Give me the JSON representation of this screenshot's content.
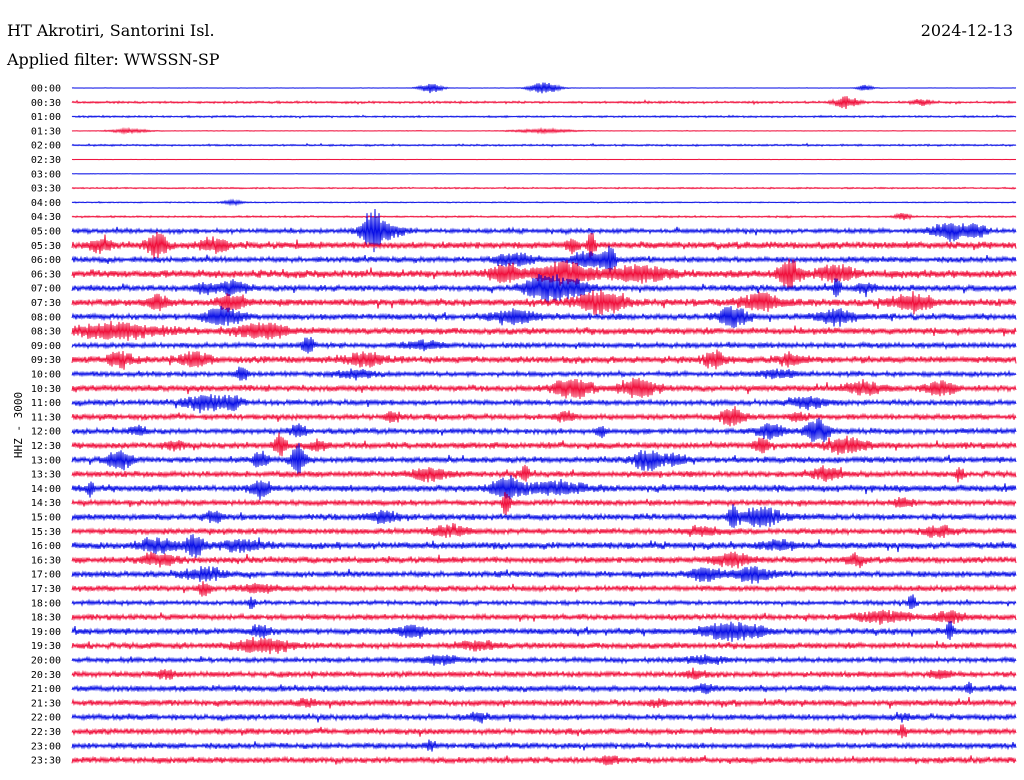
{
  "header": {
    "station": "HT Akrotiri, Santorini Isl.",
    "date": "2024-12-13",
    "filter": "Applied filter: WWSSN-SP",
    "channel": "HHZ - 3000"
  },
  "colors": {
    "blue": "#0a10e6",
    "red": "#f0103c"
  },
  "chart_data": {
    "type": "line",
    "title": "HT Akrotiri, Santorini Isl.",
    "subtitle": "Applied filter: WWSSN-SP",
    "ylabel": "HHZ - 3000",
    "xlabel": "",
    "row_labels": [
      "00:00",
      "00:30",
      "01:00",
      "01:30",
      "02:00",
      "02:30",
      "03:00",
      "03:30",
      "04:00",
      "04:30",
      "05:00",
      "05:30",
      "06:00",
      "06:30",
      "07:00",
      "07:30",
      "08:00",
      "08:30",
      "09:00",
      "09:30",
      "10:00",
      "10:30",
      "11:00",
      "11:30",
      "12:00",
      "12:30",
      "13:00",
      "13:30",
      "14:00",
      "14:30",
      "15:00",
      "15:30",
      "16:00",
      "16:30",
      "17:00",
      "17:30",
      "18:00",
      "18:30",
      "19:00",
      "19:30",
      "20:00",
      "20:30",
      "21:00",
      "21:30",
      "22:00",
      "22:30",
      "23:00",
      "23:30"
    ],
    "noise_level": [
      0.2,
      1.2,
      1.0,
      0.3,
      1.0,
      0.2,
      0.2,
      0.8,
      0.6,
      1.0,
      2.5,
      4.0,
      3.2,
      4.5,
      3.5,
      4.2,
      3.5,
      3.8,
      3.0,
      4.0,
      2.8,
      3.5,
      3.0,
      3.2,
      3.0,
      3.6,
      3.4,
      3.4,
      4.0,
      3.2,
      3.6,
      3.4,
      3.8,
      3.6,
      3.4,
      3.2,
      2.4,
      3.2,
      3.6,
      3.4,
      2.8,
      3.2,
      3.6,
      3.4,
      3.2,
      3.4,
      3.2,
      3.4
    ],
    "bursts": [
      [
        [
          0.38,
          5,
          0.012
        ],
        [
          0.5,
          6,
          0.015
        ],
        [
          0.84,
          3,
          0.008
        ]
      ],
      [
        [
          0.82,
          6,
          0.012
        ],
        [
          0.9,
          3,
          0.01
        ]
      ],
      [],
      [
        [
          0.06,
          2,
          0.02
        ],
        [
          0.5,
          2,
          0.03
        ]
      ],
      [],
      [],
      [],
      [],
      [
        [
          0.17,
          2,
          0.01
        ]
      ],
      [
        [
          0.88,
          3,
          0.008
        ]
      ],
      [
        [
          0.31,
          7,
          0.006
        ],
        [
          0.32,
          16,
          0.008
        ],
        [
          0.33,
          8,
          0.02
        ],
        [
          0.93,
          9,
          0.02
        ],
        [
          0.96,
          5,
          0.01
        ]
      ],
      [
        [
          0.03,
          6,
          0.01
        ],
        [
          0.09,
          12,
          0.01
        ],
        [
          0.15,
          6,
          0.015
        ],
        [
          0.53,
          6,
          0.006
        ],
        [
          0.55,
          12,
          0.004
        ]
      ],
      [
        [
          0.47,
          6,
          0.02
        ],
        [
          0.55,
          8,
          0.02
        ],
        [
          0.57,
          12,
          0.005
        ]
      ],
      [
        [
          0.46,
          9,
          0.015
        ],
        [
          0.52,
          10,
          0.03
        ],
        [
          0.6,
          8,
          0.03
        ],
        [
          0.76,
          14,
          0.01
        ],
        [
          0.81,
          7,
          0.02
        ]
      ],
      [
        [
          0.14,
          5,
          0.01
        ],
        [
          0.17,
          6,
          0.015
        ],
        [
          0.5,
          12,
          0.02
        ],
        [
          0.53,
          7,
          0.02
        ],
        [
          0.81,
          11,
          0.004
        ],
        [
          0.84,
          5,
          0.01
        ]
      ],
      [
        [
          0.09,
          7,
          0.01
        ],
        [
          0.17,
          7,
          0.015
        ],
        [
          0.56,
          10,
          0.025
        ],
        [
          0.73,
          8,
          0.02
        ],
        [
          0.89,
          8,
          0.02
        ]
      ],
      [
        [
          0.16,
          8,
          0.02
        ],
        [
          0.47,
          6,
          0.025
        ],
        [
          0.7,
          10,
          0.015
        ],
        [
          0.81,
          7,
          0.02
        ]
      ],
      [
        [
          0.05,
          7,
          0.05
        ],
        [
          0.2,
          7,
          0.03
        ]
      ],
      [
        [
          0.25,
          8,
          0.006
        ],
        [
          0.37,
          4,
          0.02
        ]
      ],
      [
        [
          0.05,
          8,
          0.012
        ],
        [
          0.13,
          7,
          0.015
        ],
        [
          0.31,
          6,
          0.02
        ],
        [
          0.68,
          8,
          0.01
        ],
        [
          0.76,
          5,
          0.015
        ]
      ],
      [
        [
          0.18,
          8,
          0.006
        ],
        [
          0.3,
          4,
          0.02
        ],
        [
          0.75,
          4,
          0.02
        ]
      ],
      [
        [
          0.53,
          9,
          0.02
        ],
        [
          0.6,
          8,
          0.02
        ],
        [
          0.84,
          6,
          0.02
        ],
        [
          0.92,
          6,
          0.015
        ]
      ],
      [
        [
          0.14,
          8,
          0.02
        ],
        [
          0.17,
          6,
          0.01
        ],
        [
          0.78,
          5,
          0.02
        ]
      ],
      [
        [
          0.34,
          4,
          0.01
        ],
        [
          0.52,
          4,
          0.01
        ],
        [
          0.7,
          9,
          0.012
        ],
        [
          0.77,
          4,
          0.01
        ]
      ],
      [
        [
          0.07,
          4,
          0.01
        ],
        [
          0.24,
          7,
          0.008
        ],
        [
          0.56,
          6,
          0.005
        ],
        [
          0.74,
          7,
          0.015
        ],
        [
          0.79,
          12,
          0.012
        ]
      ],
      [
        [
          0.11,
          4,
          0.01
        ],
        [
          0.22,
          12,
          0.006
        ],
        [
          0.26,
          4,
          0.01
        ],
        [
          0.73,
          7,
          0.008
        ],
        [
          0.82,
          7,
          0.02
        ]
      ],
      [
        [
          0.05,
          10,
          0.012
        ],
        [
          0.2,
          8,
          0.008
        ],
        [
          0.24,
          14,
          0.008
        ],
        [
          0.61,
          10,
          0.015
        ],
        [
          0.64,
          5,
          0.01
        ]
      ],
      [
        [
          0.38,
          6,
          0.02
        ],
        [
          0.48,
          9,
          0.005
        ],
        [
          0.8,
          6,
          0.015
        ],
        [
          0.94,
          7,
          0.003
        ]
      ],
      [
        [
          0.02,
          9,
          0.003
        ],
        [
          0.2,
          8,
          0.01
        ],
        [
          0.46,
          10,
          0.015
        ],
        [
          0.51,
          6,
          0.03
        ]
      ],
      [
        [
          0.46,
          12,
          0.004
        ],
        [
          0.88,
          4,
          0.01
        ]
      ],
      [
        [
          0.15,
          4,
          0.01
        ],
        [
          0.33,
          5,
          0.015
        ],
        [
          0.7,
          9,
          0.006
        ],
        [
          0.73,
          9,
          0.02
        ]
      ],
      [
        [
          0.4,
          5,
          0.02
        ],
        [
          0.67,
          4,
          0.02
        ],
        [
          0.92,
          5,
          0.015
        ]
      ],
      [
        [
          0.09,
          6,
          0.02
        ],
        [
          0.13,
          10,
          0.01
        ],
        [
          0.18,
          5,
          0.02
        ],
        [
          0.75,
          4,
          0.02
        ]
      ],
      [
        [
          0.09,
          5,
          0.02
        ],
        [
          0.7,
          6,
          0.02
        ],
        [
          0.83,
          5,
          0.01
        ]
      ],
      [
        [
          0.14,
          6,
          0.02
        ],
        [
          0.67,
          7,
          0.015
        ],
        [
          0.72,
          7,
          0.02
        ]
      ],
      [
        [
          0.14,
          7,
          0.006
        ],
        [
          0.2,
          4,
          0.02
        ]
      ],
      [
        [
          0.19,
          6,
          0.004
        ],
        [
          0.89,
          8,
          0.004
        ]
      ],
      [
        [
          0.86,
          5,
          0.03
        ],
        [
          0.93,
          5,
          0.015
        ]
      ],
      [
        [
          0.2,
          6,
          0.01
        ],
        [
          0.36,
          6,
          0.015
        ],
        [
          0.7,
          8,
          0.03
        ],
        [
          0.93,
          9,
          0.004
        ]
      ],
      [
        [
          0.19,
          5,
          0.02
        ],
        [
          0.22,
          5,
          0.02
        ],
        [
          0.43,
          4,
          0.02
        ]
      ],
      [
        [
          0.39,
          4,
          0.02
        ],
        [
          0.67,
          4,
          0.02
        ]
      ],
      [
        [
          0.1,
          4,
          0.01
        ],
        [
          0.66,
          4,
          0.01
        ],
        [
          0.92,
          4,
          0.01
        ]
      ],
      [
        [
          0.95,
          5,
          0.004
        ],
        [
          0.67,
          4,
          0.01
        ]
      ],
      [
        [
          0.62,
          3,
          0.01
        ],
        [
          0.25,
          3,
          0.01
        ]
      ],
      [
        [
          0.43,
          4,
          0.01
        ],
        [
          0.88,
          3,
          0.01
        ]
      ],
      [
        [
          0.88,
          6,
          0.004
        ]
      ],
      [
        [
          0.38,
          4,
          0.006
        ]
      ],
      [
        [
          0.57,
          3,
          0.01
        ]
      ]
    ]
  }
}
